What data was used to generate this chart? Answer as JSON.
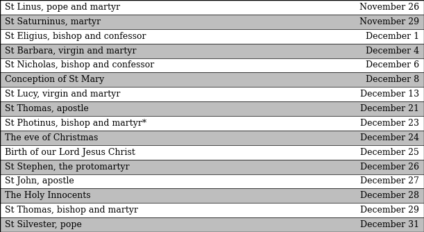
{
  "rows": [
    [
      "St Linus, pope and martyr",
      "November 26"
    ],
    [
      "St Saturninus, martyr",
      "November 29"
    ],
    [
      "St Eligius, bishop and confessor",
      "December 1"
    ],
    [
      "St Barbara, virgin and martyr",
      "December 4"
    ],
    [
      "St Nicholas, bishop and confessor",
      "December 6"
    ],
    [
      "Conception of St Mary",
      "December 8"
    ],
    [
      "St Lucy, virgin and martyr",
      "December 13"
    ],
    [
      "St Thomas, apostle",
      "December 21"
    ],
    [
      "St Photinus, bishop and martyr*",
      "December 23"
    ],
    [
      "The eve of Christmas",
      "December 24"
    ],
    [
      "Birth of our Lord Jesus Christ",
      "December 25"
    ],
    [
      "St Stephen, the protomartyr",
      "December 26"
    ],
    [
      "St John, apostle",
      "December 27"
    ],
    [
      "The Holy Innocents",
      "December 28"
    ],
    [
      "St Thomas, bishop and martyr",
      "December 29"
    ],
    [
      "St Silvester, pope",
      "December 31"
    ]
  ],
  "row_colors": [
    "#ffffff",
    "#bebebe",
    "#ffffff",
    "#bebebe",
    "#ffffff",
    "#bebebe",
    "#ffffff",
    "#bebebe",
    "#ffffff",
    "#bebebe",
    "#ffffff",
    "#bebebe",
    "#ffffff",
    "#bebebe",
    "#ffffff",
    "#bebebe"
  ],
  "border_color": "#000000",
  "text_color": "#000000",
  "font_size": 9.0,
  "fig_width": 6.11,
  "fig_height": 3.34,
  "dpi": 100
}
